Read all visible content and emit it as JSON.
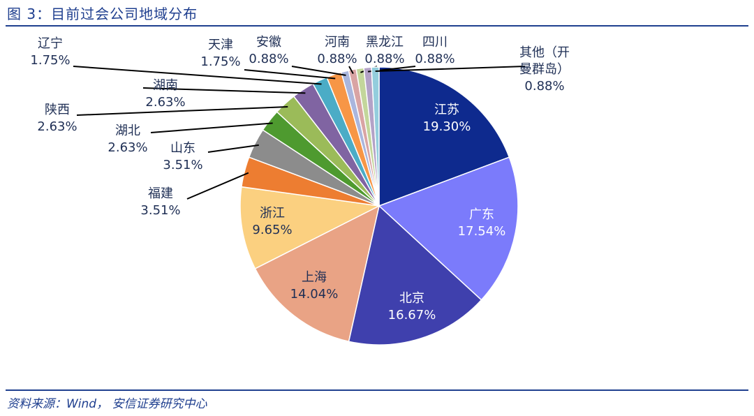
{
  "chart_data": {
    "type": "pie",
    "title": "图 3：目前过会公司地域分布",
    "source": "资料来源：Wind， 安信证券研究中心",
    "categories": [
      "江苏",
      "广东",
      "北京",
      "上海",
      "浙江",
      "福建",
      "山东",
      "湖北",
      "陕西",
      "湖南",
      "辽宁",
      "天津",
      "安徽",
      "河南",
      "黑龙江",
      "四川",
      "其他（开曼群岛）"
    ],
    "values": [
      19.3,
      17.54,
      16.67,
      14.04,
      9.65,
      3.51,
      3.51,
      2.63,
      2.63,
      2.63,
      1.75,
      1.75,
      0.88,
      0.88,
      0.88,
      0.88,
      0.88
    ],
    "value_labels": [
      "19.30%",
      "17.54%",
      "16.67%",
      "14.04%",
      "9.65%",
      "3.51%",
      "3.51%",
      "2.63%",
      "2.63%",
      "2.63%",
      "1.75%",
      "1.75%",
      "0.88%",
      "0.88%",
      "0.88%",
      "0.88%",
      "0.88%"
    ],
    "colors": [
      "#0e2a8e",
      "#7b7bfb",
      "#3f40ad",
      "#e9a385",
      "#fbd080",
      "#ed7d31",
      "#8c8c8c",
      "#4e9a2f",
      "#9bbb59",
      "#8064a2",
      "#4bacc6",
      "#f79646",
      "#aab6dd",
      "#d9a4a4",
      "#c3d69b",
      "#b3a2c7",
      "#93cddd"
    ]
  }
}
